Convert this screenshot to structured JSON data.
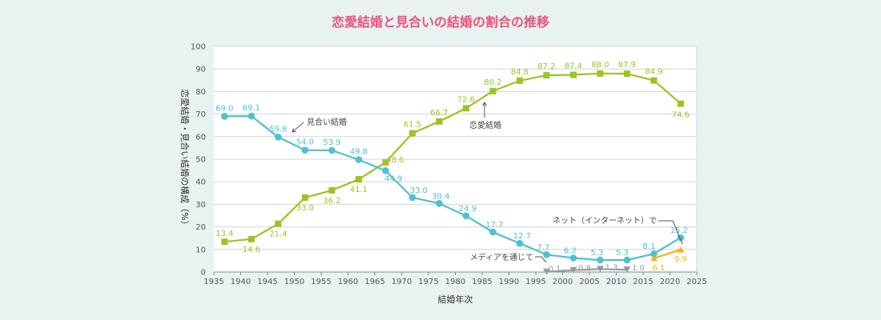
{
  "chart_data": {
    "type": "line",
    "title": "恋愛結婚と見合いの結婚の割合の推移",
    "xlabel": "結婚年次",
    "ylabel": "恋愛結婚・見合い結婚の構成（%）",
    "xlim": [
      1935,
      2025
    ],
    "ylim": [
      0,
      100
    ],
    "x_ticks": [
      1935,
      1940,
      1945,
      1950,
      1955,
      1960,
      1965,
      1970,
      1975,
      1980,
      1985,
      1990,
      1995,
      2000,
      2005,
      2010,
      2015,
      2020,
      2025
    ],
    "y_ticks": [
      0,
      10,
      20,
      30,
      40,
      50,
      60,
      70,
      80,
      90,
      100
    ],
    "grid": "horizontal",
    "series": [
      {
        "name": "恋愛結婚",
        "color": "#9bc423",
        "marker": "square",
        "x": [
          1937,
          1942,
          1947,
          1952,
          1957,
          1962,
          1967,
          1972,
          1977,
          1982,
          1987,
          1992,
          1997,
          2002,
          2007,
          2012,
          2017,
          2022
        ],
        "values": [
          13.4,
          14.6,
          21.4,
          33.0,
          36.2,
          41.1,
          48.6,
          61.5,
          66.7,
          72.6,
          80.2,
          84.8,
          87.2,
          87.4,
          88.0,
          87.9,
          84.9,
          74.6
        ],
        "labels": [
          "13.4",
          "14.6",
          "21.4",
          "33.0",
          "36.2",
          "41.1",
          "48.6",
          "61.5",
          "66.7",
          "72.6",
          "80.2",
          "84.8",
          "87.2",
          "87.4",
          "88.0",
          "87.9",
          "84.9",
          "74.6"
        ]
      },
      {
        "name": "見合い結婚",
        "color": "#4fc0d0",
        "marker": "circle",
        "x": [
          1937,
          1942,
          1947,
          1952,
          1957,
          1962,
          1967,
          1972,
          1977,
          1982,
          1987,
          1992,
          1997,
          2002,
          2007,
          2012,
          2017,
          2022
        ],
        "values": [
          69.0,
          69.1,
          59.8,
          54.0,
          53.9,
          49.8,
          44.9,
          33.0,
          30.4,
          24.9,
          17.7,
          12.7,
          7.7,
          6.2,
          5.3,
          5.3,
          8.1,
          15.2
        ],
        "labels": [
          "69.0",
          "69.1",
          "59.8",
          "54.0",
          "53.9",
          "49.8",
          "44.9",
          "33.0",
          "30.4",
          "24.9",
          "17.7",
          "12.7",
          "7.7",
          "6.2",
          "5.3",
          "5.3",
          "8.1",
          "15.2"
        ]
      },
      {
        "name": "メディアを通じて",
        "color": "#999999",
        "marker": "triangle-down",
        "x": [
          1997,
          2002,
          2007,
          2012
        ],
        "values": [
          0.1,
          0.8,
          1.3,
          1.0
        ],
        "labels": [
          "0.1",
          "0.8",
          "1.3",
          "1.0"
        ]
      },
      {
        "name": "ネット（インターネット）で",
        "color": "#f5b316",
        "marker": "triangle-up",
        "x": [
          2017,
          2022
        ],
        "values": [
          6.1,
          9.9
        ],
        "labels": [
          "6.1",
          "9.9"
        ]
      }
    ],
    "annotations": {
      "love": "恋愛結婚",
      "arranged": "見合い結婚",
      "media": "メディアを通じて",
      "net": "ネット（インターネット）で"
    }
  }
}
